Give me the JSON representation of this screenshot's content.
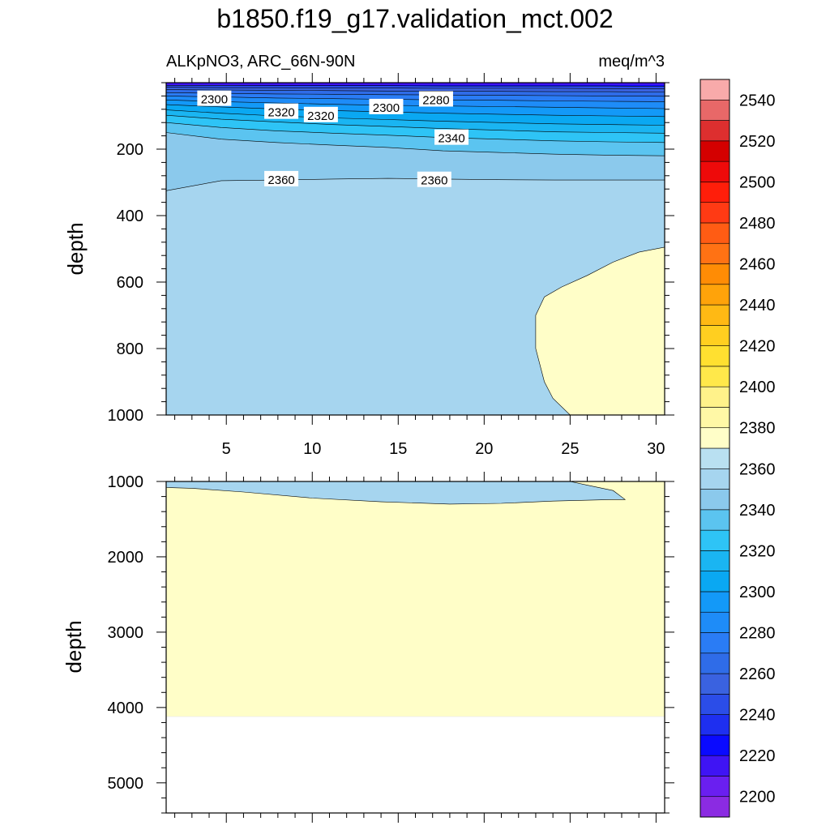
{
  "title": "b1850.f19_g17.validation_mct.002",
  "subtitle_left": "ALKpNO3, ARC_66N-90N",
  "subtitle_right": "meq/m^3",
  "colors": {
    "shallow_fill": "#b9e0f1",
    "deep_fill": "#fffec8",
    "contour_line": "#000000",
    "panel_border": "#000000"
  },
  "chart_data": [
    {
      "type": "contour",
      "panel": "upper",
      "xlabel": "",
      "ylabel": "depth",
      "xlim": [
        1.5,
        30.5
      ],
      "ylim": [
        1000,
        0
      ],
      "x_ticks": [
        5,
        10,
        15,
        20,
        25,
        30
      ],
      "x_tick_labels": [
        "5",
        "10",
        "15",
        "20",
        "25",
        "30"
      ],
      "y_ticks": [
        200,
        400,
        600,
        800,
        1000
      ],
      "y_tick_labels": [
        "200",
        "400",
        "600",
        "800",
        "1000"
      ],
      "background_band": "2360",
      "filled_regions": [
        {
          "level": "2380",
          "boundary": [
            [
              30.5,
              495
            ],
            [
              29,
              510
            ],
            [
              27.5,
              540
            ],
            [
              26,
              580
            ],
            [
              24.5,
              615
            ],
            [
              23.5,
              645
            ],
            [
              23,
              700
            ],
            [
              23,
              800
            ],
            [
              23.5,
              900
            ],
            [
              24,
              950
            ],
            [
              25,
              1000
            ],
            [
              30.5,
              1000
            ]
          ]
        }
      ],
      "contour_lines": [
        {
          "level": 2360,
          "depth": [
            325,
            295,
            293,
            290,
            288,
            290,
            292,
            293,
            293,
            293
          ]
        },
        {
          "level": 2350,
          "depth": [
            150,
            170,
            180,
            188,
            195,
            205,
            210,
            215,
            218,
            220
          ]
        },
        {
          "level": 2340,
          "depth": [
            120,
            135,
            145,
            152,
            158,
            165,
            170,
            175,
            178,
            180
          ]
        },
        {
          "level": 2330,
          "depth": [
            98,
            110,
            118,
            126,
            132,
            138,
            143,
            148,
            150,
            152
          ]
        },
        {
          "level": 2320,
          "depth": [
            82,
            92,
            100,
            106,
            111,
            116,
            120,
            124,
            126,
            128
          ]
        },
        {
          "level": 2310,
          "depth": [
            66,
            73,
            79,
            84,
            88,
            92,
            95,
            98,
            100,
            102
          ]
        },
        {
          "level": 2300,
          "depth": [
            52,
            57,
            61,
            65,
            68,
            70,
            72,
            74,
            76,
            78
          ]
        },
        {
          "level": 2290,
          "depth": [
            40,
            43,
            46,
            48,
            50,
            52,
            53,
            55,
            56,
            57
          ]
        },
        {
          "level": 2280,
          "depth": [
            30,
            32,
            34,
            35,
            36,
            37,
            38,
            39,
            40,
            41
          ]
        },
        {
          "level": 2270,
          "depth": [
            21,
            22,
            23,
            24,
            25,
            25,
            26,
            27,
            27,
            28
          ]
        },
        {
          "level": 2260,
          "depth": [
            14,
            15,
            15,
            16,
            16,
            17,
            17,
            17,
            18,
            18
          ]
        },
        {
          "level": 2250,
          "depth": [
            8,
            8,
            9,
            9,
            9,
            10,
            10,
            10,
            10,
            11
          ]
        }
      ],
      "line_x": [
        1.5,
        4.7,
        7.9,
        11.2,
        14.4,
        17.6,
        20.8,
        24.1,
        27.3,
        30.5
      ],
      "contour_labels": [
        {
          "text": "2300",
          "x": 4.3,
          "depth": 48
        },
        {
          "text": "2320",
          "x": 8.2,
          "depth": 87
        },
        {
          "text": "2320",
          "x": 10.5,
          "depth": 97
        },
        {
          "text": "2300",
          "x": 14.3,
          "depth": 73
        },
        {
          "text": "2280",
          "x": 17.2,
          "depth": 50
        },
        {
          "text": "2340",
          "x": 18.1,
          "depth": 165
        },
        {
          "text": "2360",
          "x": 8.2,
          "depth": 290
        },
        {
          "text": "2360",
          "x": 17.1,
          "depth": 292
        }
      ]
    },
    {
      "type": "contour",
      "panel": "lower",
      "xlabel": "",
      "ylabel": "depth",
      "xlim": [
        1.5,
        30.5
      ],
      "ylim": [
        5400,
        1000
      ],
      "x_ticks": [
        5,
        10,
        15,
        20,
        25,
        30
      ],
      "y_ticks": [
        1000,
        2000,
        3000,
        4000,
        5000
      ],
      "y_tick_labels": [
        "1000",
        "2000",
        "3000",
        "4000",
        "5000"
      ],
      "background_band": "2380",
      "ocean_bottom_depth": 4120,
      "filled_regions": [
        {
          "level": "2360",
          "boundary": [
            [
              1.5,
              1000
            ],
            [
              1.5,
              1080
            ],
            [
              3,
              1090
            ],
            [
              6,
              1140
            ],
            [
              10,
              1220
            ],
            [
              14,
              1270
            ],
            [
              18,
              1300
            ],
            [
              21,
              1290
            ],
            [
              24,
              1260
            ],
            [
              27.5,
              1240
            ],
            [
              28.2,
              1240
            ],
            [
              27.5,
              1120
            ],
            [
              26,
              1050
            ],
            [
              25,
              1000
            ]
          ]
        }
      ]
    },
    {
      "type": "colorbar",
      "levels": [
        2200,
        2210,
        2220,
        2230,
        2240,
        2250,
        2260,
        2270,
        2280,
        2290,
        2300,
        2310,
        2320,
        2330,
        2340,
        2350,
        2360,
        2370,
        2380,
        2390,
        2400,
        2410,
        2420,
        2430,
        2440,
        2450,
        2460,
        2470,
        2480,
        2490,
        2500,
        2510,
        2520,
        2530,
        2540,
        2550
      ],
      "labels": [
        "2200",
        "2220",
        "2240",
        "2260",
        "2280",
        "2300",
        "2320",
        "2340",
        "2360",
        "2380",
        "2400",
        "2420",
        "2440",
        "2460",
        "2480",
        "2500",
        "2520",
        "2540"
      ],
      "label_values": [
        2200,
        2220,
        2240,
        2260,
        2280,
        2300,
        2320,
        2340,
        2360,
        2380,
        2400,
        2420,
        2440,
        2460,
        2480,
        2500,
        2520,
        2540
      ],
      "colors": [
        "#8b2be2",
        "#6a1ff0",
        "#3f14f4",
        "#0a0aff",
        "#1e2ff0",
        "#2b4de8",
        "#3a62e0",
        "#2f6ce8",
        "#2a7cf5",
        "#1e8cf8",
        "#1399f8",
        "#0aa8f2",
        "#1ab5f2",
        "#2ec4f6",
        "#5bc4f0",
        "#8bc9ec",
        "#a6d5ef",
        "#b9e0f1",
        "#fffec8",
        "#fff8a6",
        "#fff28a",
        "#ffe84a",
        "#ffe030",
        "#ffcf20",
        "#ffb914",
        "#ffa30a",
        "#ff8c05",
        "#ff7214",
        "#ff5c14",
        "#ff3a14",
        "#ff1e0a",
        "#ee0a0a",
        "#d40000",
        "#dd2f2f",
        "#e86868",
        "#f8aaaa"
      ]
    }
  ]
}
